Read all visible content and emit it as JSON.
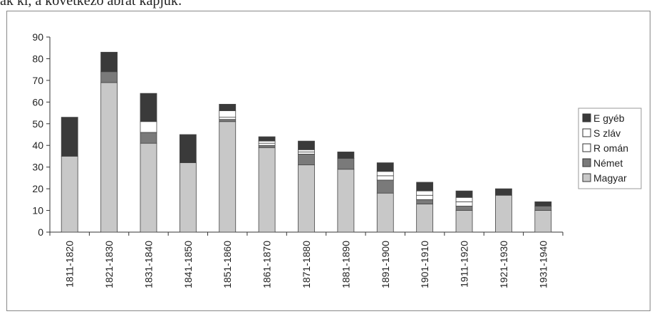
{
  "caption": "ák ki, a következő ábrát kapjuk:",
  "chart_data": {
    "type": "bar",
    "stacked": true,
    "categories": [
      "1811-1820",
      "1821-1830",
      "1831-1840",
      "1841-1850",
      "1851-1860",
      "1861-1870",
      "1871-1880",
      "1881-1890",
      "1891-1900",
      "1901-1910",
      "1911-1920",
      "1921-1930",
      "1931-1940"
    ],
    "series": [
      {
        "name": "Magyar",
        "color": "#c8c8c8",
        "values": [
          35,
          69,
          41,
          32,
          51,
          39,
          31,
          29,
          18,
          13,
          10,
          17,
          10
        ]
      },
      {
        "name": "Német",
        "color": "#7a7a7a",
        "values": [
          0,
          5,
          5,
          0,
          1,
          1,
          5,
          5,
          6,
          2,
          2,
          0,
          2
        ]
      },
      {
        "name": "Román",
        "color": "#ffffff",
        "values": [
          0,
          0,
          5,
          0,
          1,
          1,
          1,
          0,
          2,
          2,
          2,
          0,
          0
        ]
      },
      {
        "name": "Szláv",
        "color": "#ffffff",
        "values": [
          0,
          0,
          0,
          0,
          3,
          1,
          1,
          0,
          2,
          2,
          2,
          0,
          0
        ]
      },
      {
        "name": "Egyéb",
        "color": "#3a3a3a",
        "values": [
          18,
          9,
          13,
          13,
          3,
          2,
          4,
          3,
          4,
          4,
          3,
          3,
          2
        ]
      }
    ],
    "yticks": [
      "0",
      "10",
      "20",
      "30",
      "40",
      "50",
      "60",
      "70",
      "80",
      "90"
    ],
    "ylim": [
      0,
      90
    ],
    "grid": false,
    "legend": {
      "placement": "right",
      "order": [
        "Egyéb",
        "Szláv",
        "Román",
        "Német",
        "Magyar"
      ],
      "labels": [
        "E gyéb",
        "S zláv",
        "R omán",
        "Német",
        "Magyar"
      ]
    }
  }
}
